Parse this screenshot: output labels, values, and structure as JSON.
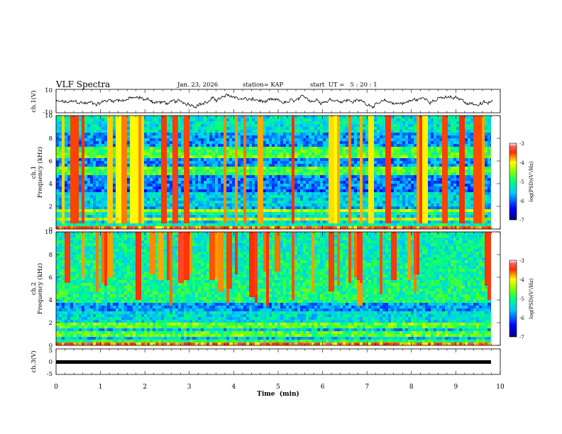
{
  "header": {
    "title": "VLF Spectra",
    "date": "Jan. 23, 2026",
    "station": "station= KAP",
    "start": "start  UT =   5 : 20 : 1"
  },
  "chart_data": [
    {
      "type": "line",
      "panel": "ch1-waveform",
      "ylabel": "ch.1(V)",
      "ylim": [
        -10,
        10
      ],
      "ytick_labels": [
        "10",
        "-10"
      ],
      "x_range_min": [
        0,
        9.85
      ],
      "description_series": "voltage trace oscillating roughly between -5 and 5 V"
    },
    {
      "type": "heatmap",
      "panel": "ch1-spectrogram",
      "ylabel": "ch.1\nFrequency (kHz)",
      "ylabel_lines": [
        "ch.1",
        "Frequency (kHz)"
      ],
      "ylim": [
        0,
        10
      ],
      "ytick_labels": [
        "0",
        "2",
        "4",
        "6",
        "8",
        "10"
      ],
      "colorbar": {
        "label": "log(PSD)(V²/Hz)",
        "range": [
          -7,
          -3
        ],
        "tick_labels": [
          "-3",
          "-4",
          "-5",
          "-6",
          "-7"
        ]
      }
    },
    {
      "type": "heatmap",
      "panel": "ch2-spectrogram",
      "ylabel_lines": [
        "ch.2",
        "Frequency (kHz)"
      ],
      "ylim": [
        0,
        10
      ],
      "ytick_labels": [
        "0",
        "2",
        "4",
        "6",
        "8",
        "10"
      ],
      "colorbar": {
        "label": "log(PSD)(V²/Hz)",
        "range": [
          -7,
          -3
        ],
        "tick_labels": [
          "-3",
          "-4",
          "-5",
          "-6",
          "-7"
        ]
      }
    },
    {
      "type": "line",
      "panel": "ch3-waveform",
      "ylabel": "ch.3(V)",
      "ylim": [
        -5,
        5
      ],
      "ytick_labels": [
        "5",
        "0",
        "-5"
      ],
      "constant_value_approx": -0.5
    }
  ],
  "xaxis": {
    "label": "Time  (min)",
    "range": [
      0,
      10
    ],
    "tick_labels": [
      "0",
      "1",
      "2",
      "3",
      "4",
      "5",
      "6",
      "7",
      "8",
      "9",
      "10"
    ]
  },
  "colorbar_label": "log(PSD)(V²/Hz)",
  "ch1_ylabel": "ch.1(V)",
  "ch3_ylabel": "ch.3(V)",
  "spec1_ylabel_a": "ch.1",
  "spec1_ylabel_b": "Frequency (kHz)",
  "spec2_ylabel_a": "ch.2",
  "spec2_ylabel_b": "Frequency (kHz)"
}
